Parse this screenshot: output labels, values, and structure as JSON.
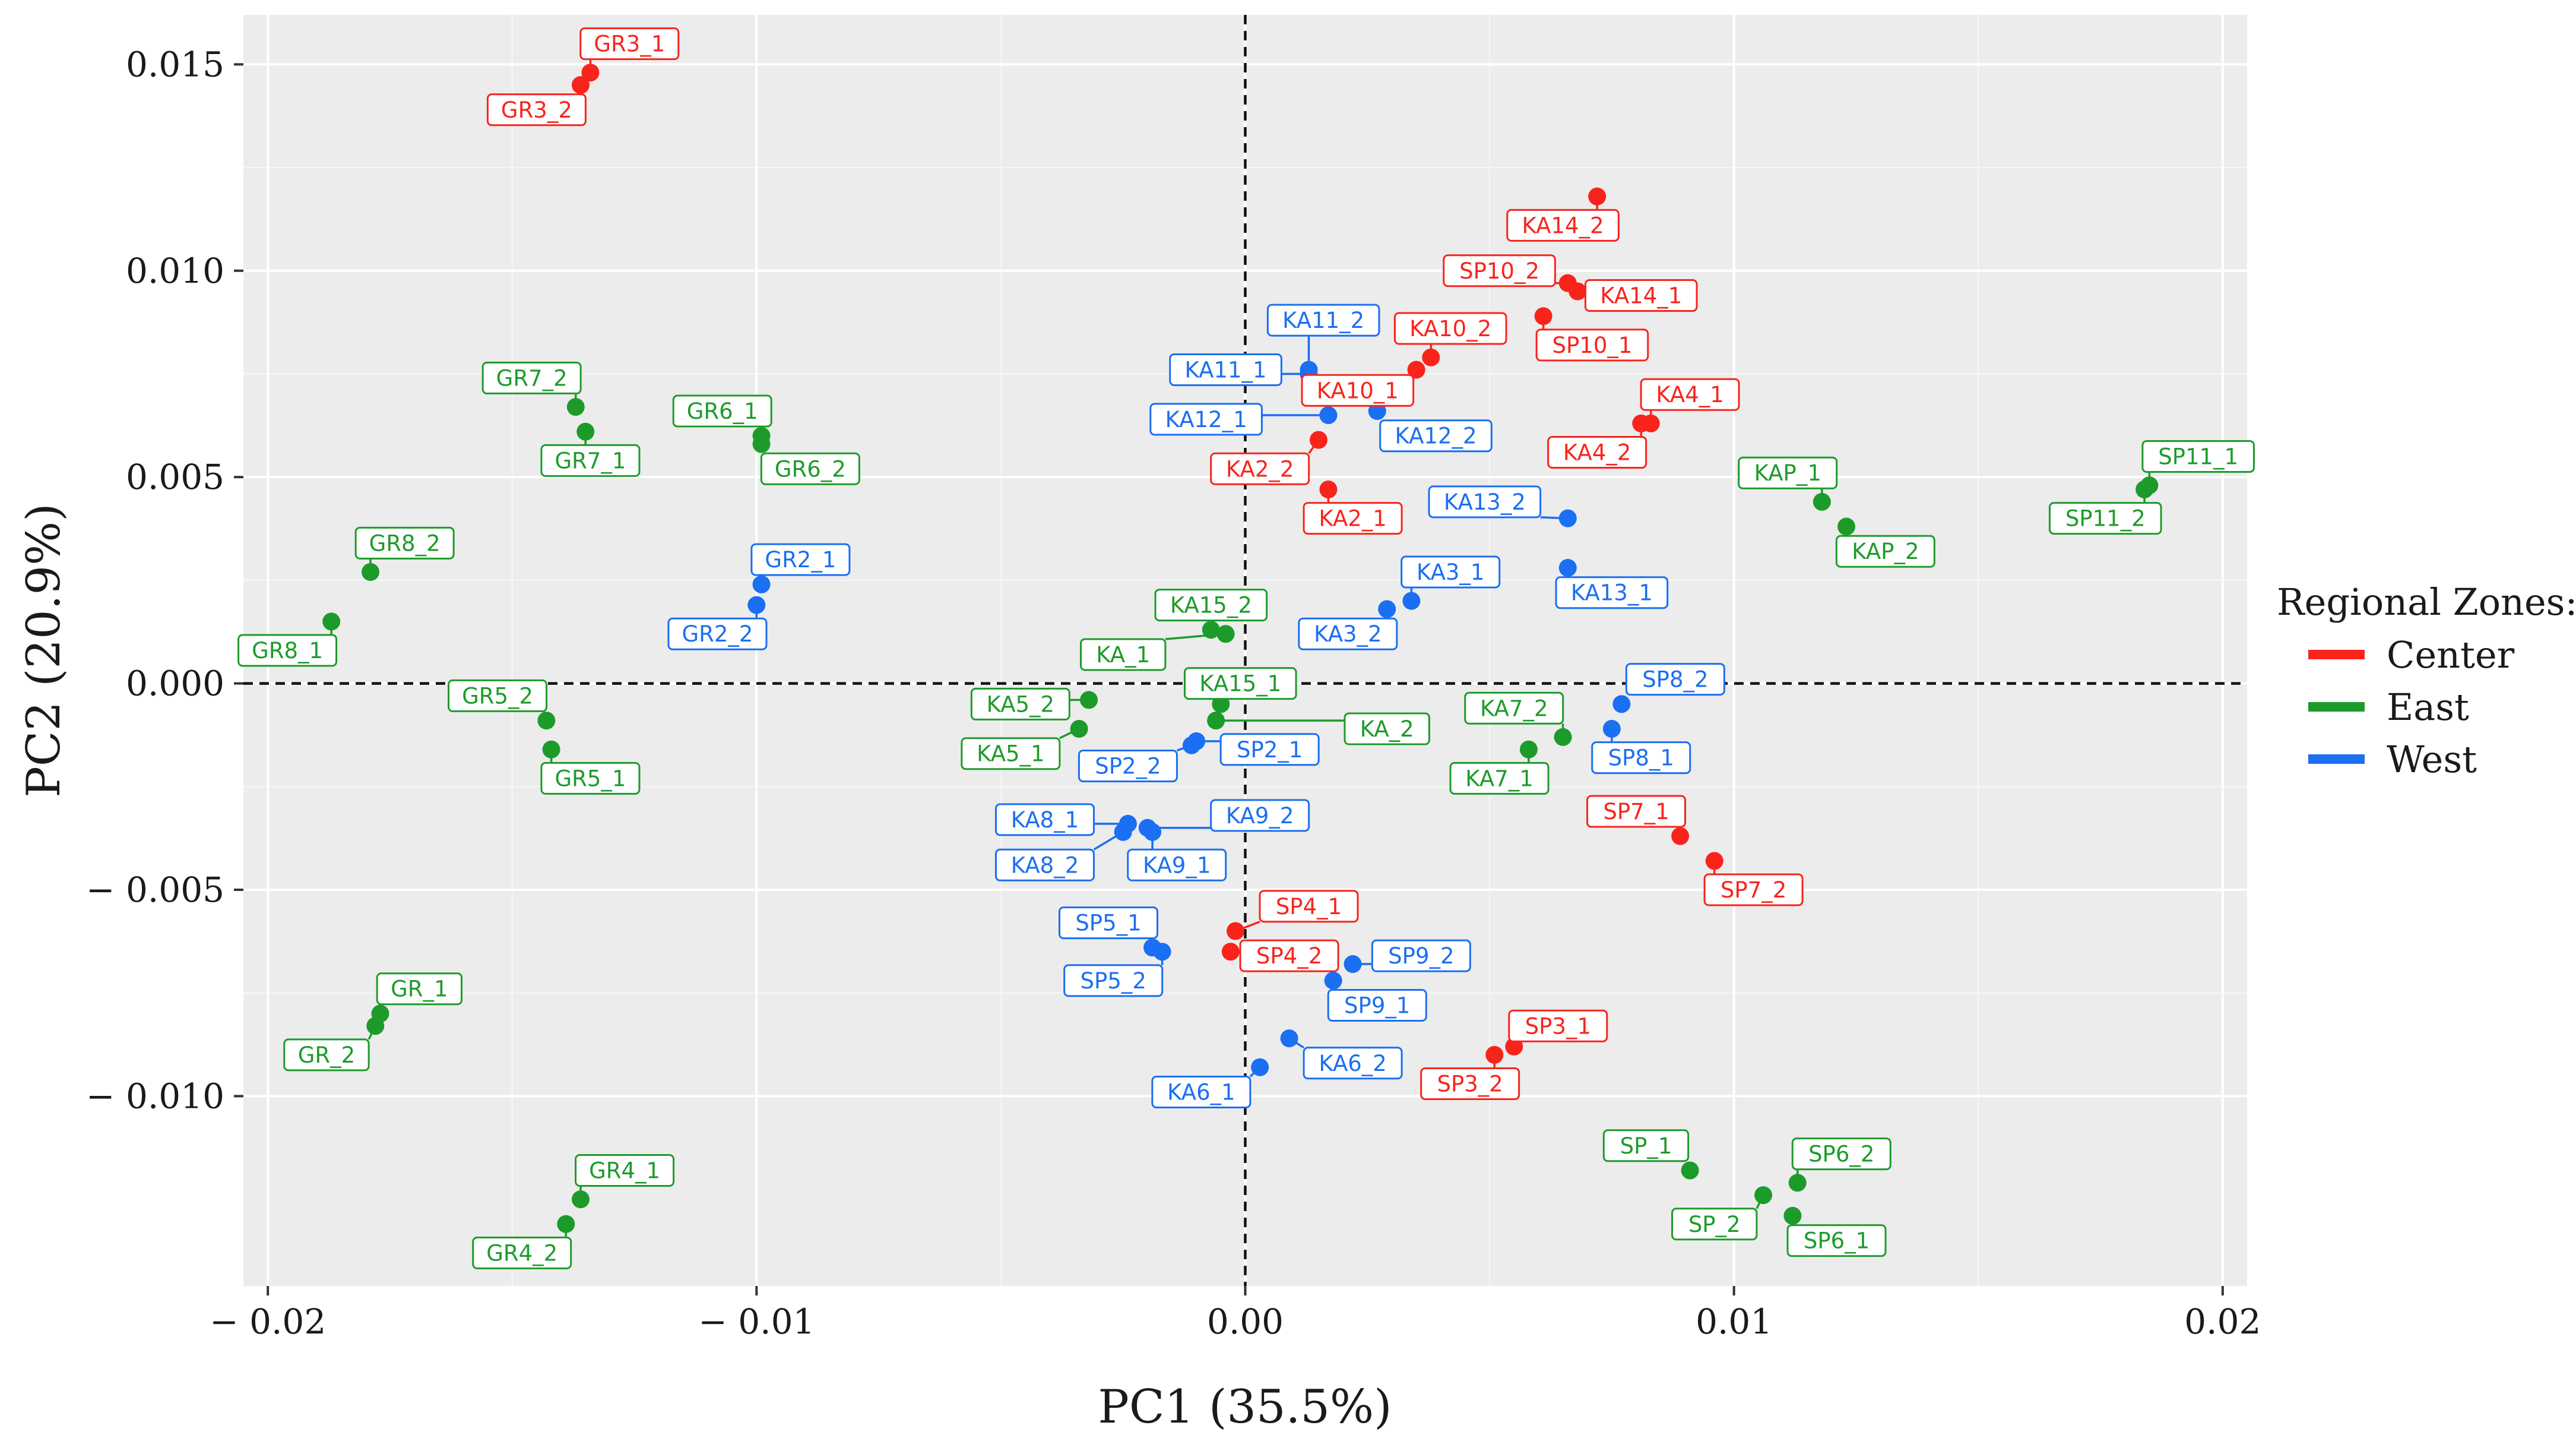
{
  "chart_data": {
    "type": "scatter",
    "title": "",
    "xlabel": "PC1 (35.5%)",
    "ylabel": "PC2 (20.9%)",
    "xlim": [
      -0.0205,
      0.0205
    ],
    "ylim": [
      -0.0146,
      0.0162
    ],
    "xticks": [
      -0.02,
      -0.01,
      0.0,
      0.01,
      0.02
    ],
    "xtick_labels": [
      "− 0.02",
      "− 0.01",
      "0.00",
      "0.01",
      "0.02"
    ],
    "yticks": [
      0.015,
      0.01,
      0.005,
      0.0,
      -0.005,
      -0.01
    ],
    "ytick_labels": [
      "0.015",
      "0.010",
      "0.005",
      "0.000",
      "− 0.005",
      "− 0.010"
    ],
    "grid": true,
    "reference_lines": {
      "x": 0,
      "y": 0,
      "style": "dashed"
    },
    "legend": {
      "title": "Regional Zones:",
      "position": "right",
      "entries": [
        {
          "name": "Center",
          "color": "#f8241c"
        },
        {
          "name": "East",
          "color": "#1d9b2a"
        },
        {
          "name": "West",
          "color": "#1a6ff2"
        }
      ]
    },
    "series": [
      {
        "name": "Center",
        "color": "#f8241c",
        "points": [
          {
            "label": "GR3_1",
            "x": -0.0134,
            "y": 0.0148,
            "lx": -0.0126,
            "ly": 0.0155
          },
          {
            "label": "GR3_2",
            "x": -0.0136,
            "y": 0.0145,
            "lx": -0.0145,
            "ly": 0.0139
          },
          {
            "label": "KA14_2",
            "x": 0.0072,
            "y": 0.0118,
            "lx": 0.0065,
            "ly": 0.0111
          },
          {
            "label": "SP10_2",
            "x": 0.0066,
            "y": 0.0097,
            "lx": 0.0052,
            "ly": 0.01
          },
          {
            "label": "KA14_1",
            "x": 0.0068,
            "y": 0.0095,
            "lx": 0.0081,
            "ly": 0.0094
          },
          {
            "label": "SP10_1",
            "x": 0.0061,
            "y": 0.0089,
            "lx": 0.0071,
            "ly": 0.0082
          },
          {
            "label": "KA10_2",
            "x": 0.0038,
            "y": 0.0079,
            "lx": 0.0042,
            "ly": 0.0086
          },
          {
            "label": "KA10_1",
            "x": 0.0035,
            "y": 0.0076,
            "lx": 0.0023,
            "ly": 0.0071
          },
          {
            "label": "KA4_1",
            "x": 0.0083,
            "y": 0.0063,
            "lx": 0.0091,
            "ly": 0.007
          },
          {
            "label": "KA4_2",
            "x": 0.0081,
            "y": 0.0063,
            "lx": 0.0072,
            "ly": 0.0056
          },
          {
            "label": "KA2_2",
            "x": 0.0015,
            "y": 0.0059,
            "lx": 0.0003,
            "ly": 0.0052
          },
          {
            "label": "KA2_1",
            "x": 0.0017,
            "y": 0.0047,
            "lx": 0.0022,
            "ly": 0.004
          },
          {
            "label": "SP7_1",
            "x": 0.0089,
            "y": -0.0037,
            "lx": 0.008,
            "ly": -0.0031
          },
          {
            "label": "SP7_2",
            "x": 0.0096,
            "y": -0.0043,
            "lx": 0.0104,
            "ly": -0.005
          },
          {
            "label": "SP4_1",
            "x": -0.0002,
            "y": -0.006,
            "lx": 0.0013,
            "ly": -0.0054
          },
          {
            "label": "SP4_2",
            "x": -0.0003,
            "y": -0.0065,
            "lx": 0.0009,
            "ly": -0.0066
          },
          {
            "label": "SP3_1",
            "x": 0.0055,
            "y": -0.0088,
            "lx": 0.0064,
            "ly": -0.0083
          },
          {
            "label": "SP3_2",
            "x": 0.0051,
            "y": -0.009,
            "lx": 0.0046,
            "ly": -0.0097
          }
        ]
      },
      {
        "name": "East",
        "color": "#1d9b2a",
        "points": [
          {
            "label": "GR7_2",
            "x": -0.0137,
            "y": 0.0067,
            "lx": -0.0146,
            "ly": 0.0074
          },
          {
            "label": "GR7_1",
            "x": -0.0135,
            "y": 0.0061,
            "lx": -0.0134,
            "ly": 0.0054
          },
          {
            "label": "GR6_1",
            "x": -0.0099,
            "y": 0.006,
            "lx": -0.0107,
            "ly": 0.0066
          },
          {
            "label": "GR6_2",
            "x": -0.0099,
            "y": 0.0058,
            "lx": -0.0089,
            "ly": 0.0052
          },
          {
            "label": "GR8_2",
            "x": -0.0179,
            "y": 0.0027,
            "lx": -0.0172,
            "ly": 0.0034
          },
          {
            "label": "GR8_1",
            "x": -0.0187,
            "y": 0.0015,
            "lx": -0.0196,
            "ly": 0.0008
          },
          {
            "label": "GR5_2",
            "x": -0.0143,
            "y": -0.0009,
            "lx": -0.0153,
            "ly": -0.0003
          },
          {
            "label": "GR5_1",
            "x": -0.0142,
            "y": -0.0016,
            "lx": -0.0134,
            "ly": -0.0023
          },
          {
            "label": "GR_1",
            "x": -0.0177,
            "y": -0.008,
            "lx": -0.0169,
            "ly": -0.0074
          },
          {
            "label": "GR_2",
            "x": -0.0178,
            "y": -0.0083,
            "lx": -0.0188,
            "ly": -0.009
          },
          {
            "label": "GR4_1",
            "x": -0.0136,
            "y": -0.0125,
            "lx": -0.0127,
            "ly": -0.0118
          },
          {
            "label": "GR4_2",
            "x": -0.0139,
            "y": -0.0131,
            "lx": -0.0148,
            "ly": -0.0138
          },
          {
            "label": "KA15_2",
            "x": -0.0007,
            "y": 0.0013,
            "lx": -0.0007,
            "ly": 0.0019
          },
          {
            "label": "KA_1",
            "x": -0.0004,
            "y": 0.0012,
            "lx": -0.0025,
            "ly": 0.0007
          },
          {
            "label": "KA15_1",
            "x": -0.0005,
            "y": -0.0005,
            "lx": -0.0001,
            "ly": 0.0
          },
          {
            "label": "KA5_2",
            "x": -0.0032,
            "y": -0.0004,
            "lx": -0.0046,
            "ly": -0.0005
          },
          {
            "label": "KA5_1",
            "x": -0.0034,
            "y": -0.0011,
            "lx": -0.0048,
            "ly": -0.0017
          },
          {
            "label": "KA_2",
            "x": -0.0006,
            "y": -0.0009,
            "lx": 0.0029,
            "ly": -0.0011
          },
          {
            "label": "KA7_2",
            "x": 0.0065,
            "y": -0.0013,
            "lx": 0.0055,
            "ly": -0.0006
          },
          {
            "label": "KA7_1",
            "x": 0.0058,
            "y": -0.0016,
            "lx": 0.0052,
            "ly": -0.0023
          },
          {
            "label": "KAP_1",
            "x": 0.0118,
            "y": 0.0044,
            "lx": 0.0111,
            "ly": 0.0051
          },
          {
            "label": "KAP_2",
            "x": 0.0123,
            "y": 0.0038,
            "lx": 0.0131,
            "ly": 0.0032
          },
          {
            "label": "SP11_1",
            "x": 0.0185,
            "y": 0.0048,
            "lx": 0.0195,
            "ly": 0.0055
          },
          {
            "label": "SP11_2",
            "x": 0.0184,
            "y": 0.0047,
            "lx": 0.0176,
            "ly": 0.004
          },
          {
            "label": "SP_1",
            "x": 0.0091,
            "y": -0.0118,
            "lx": 0.0082,
            "ly": -0.0112
          },
          {
            "label": "SP_2",
            "x": 0.0106,
            "y": -0.0124,
            "lx": 0.0096,
            "ly": -0.0131
          },
          {
            "label": "SP6_2",
            "x": 0.0113,
            "y": -0.0121,
            "lx": 0.0122,
            "ly": -0.0114
          },
          {
            "label": "SP6_1",
            "x": 0.0112,
            "y": -0.0129,
            "lx": 0.0121,
            "ly": -0.0135
          }
        ]
      },
      {
        "name": "West",
        "color": "#1a6ff2",
        "points": [
          {
            "label": "KA11_2",
            "x": 0.0013,
            "y": 0.0076,
            "lx": 0.0016,
            "ly": 0.0088
          },
          {
            "label": "KA11_1",
            "x": 0.0013,
            "y": 0.0075,
            "lx": -0.0004,
            "ly": 0.0076
          },
          {
            "label": "KA12_1",
            "x": 0.0017,
            "y": 0.0065,
            "lx": -0.0008,
            "ly": 0.0064
          },
          {
            "label": "KA12_2",
            "x": 0.0027,
            "y": 0.0066,
            "lx": 0.0039,
            "ly": 0.006
          },
          {
            "label": "KA13_2",
            "x": 0.0066,
            "y": 0.004,
            "lx": 0.0049,
            "ly": 0.0044
          },
          {
            "label": "KA13_1",
            "x": 0.0066,
            "y": 0.0028,
            "lx": 0.0075,
            "ly": 0.0022
          },
          {
            "label": "KA3_1",
            "x": 0.0034,
            "y": 0.002,
            "lx": 0.0042,
            "ly": 0.0027
          },
          {
            "label": "KA3_2",
            "x": 0.0029,
            "y": 0.0018,
            "lx": 0.0021,
            "ly": 0.0012
          },
          {
            "label": "GR2_1",
            "x": -0.0099,
            "y": 0.0024,
            "lx": -0.0091,
            "ly": 0.003
          },
          {
            "label": "GR2_2",
            "x": -0.01,
            "y": 0.0019,
            "lx": -0.0108,
            "ly": 0.0012
          },
          {
            "label": "SP8_2",
            "x": 0.0077,
            "y": -0.0005,
            "lx": 0.0088,
            "ly": 0.0001
          },
          {
            "label": "SP8_1",
            "x": 0.0075,
            "y": -0.0011,
            "lx": 0.0081,
            "ly": -0.0018
          },
          {
            "label": "SP2_2",
            "x": -0.0011,
            "y": -0.0015,
            "lx": -0.0024,
            "ly": -0.002
          },
          {
            "label": "SP2_1",
            "x": -0.001,
            "y": -0.0014,
            "lx": 0.0005,
            "ly": -0.0016
          },
          {
            "label": "KA8_1",
            "x": -0.0024,
            "y": -0.0034,
            "lx": -0.0041,
            "ly": -0.0033
          },
          {
            "label": "KA9_2",
            "x": -0.002,
            "y": -0.0035,
            "lx": 0.0003,
            "ly": -0.0032
          },
          {
            "label": "KA8_2",
            "x": -0.0025,
            "y": -0.0036,
            "lx": -0.0041,
            "ly": -0.0044
          },
          {
            "label": "KA9_1",
            "x": -0.0019,
            "y": -0.0036,
            "lx": -0.0014,
            "ly": -0.0044
          },
          {
            "label": "SP5_1",
            "x": -0.0019,
            "y": -0.0064,
            "lx": -0.0028,
            "ly": -0.0058
          },
          {
            "label": "SP5_2",
            "x": -0.0017,
            "y": -0.0065,
            "lx": -0.0027,
            "ly": -0.0072
          },
          {
            "label": "SP9_2",
            "x": 0.0022,
            "y": -0.0068,
            "lx": 0.0036,
            "ly": -0.0066
          },
          {
            "label": "SP9_1",
            "x": 0.0018,
            "y": -0.0072,
            "lx": 0.0027,
            "ly": -0.0078
          },
          {
            "label": "KA6_2",
            "x": 0.0009,
            "y": -0.0086,
            "lx": 0.0022,
            "ly": -0.0092
          },
          {
            "label": "KA6_1",
            "x": 0.0003,
            "y": -0.0093,
            "lx": -0.0009,
            "ly": -0.0099
          }
        ]
      }
    ]
  }
}
